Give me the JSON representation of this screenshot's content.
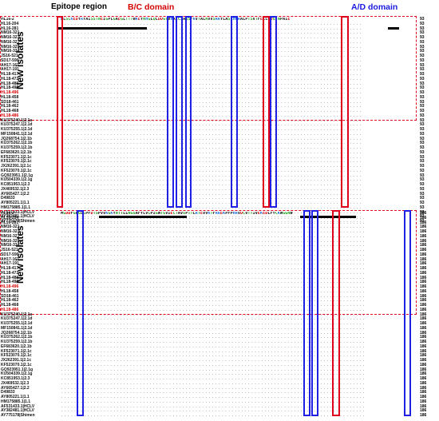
{
  "headers": {
    "epitope": "Epitope region",
    "bc": "B/C domain",
    "ad": "A/D domain"
  },
  "new_isolates_label": "New isolates",
  "colors": {
    "red_box": "#e0001b",
    "blue_box": "#1f1fe6",
    "n_green": "#1aa81a",
    "r_blue": "#1a6fe0",
    "d_red": "#d40000"
  },
  "isolates": [
    "HL16-2",
    "HL16-204",
    "HL16-281",
    "NM16-321",
    "NM16-323",
    "NM16-327",
    "NM16-329",
    "NM16-334",
    "JS16-521",
    "SD17-590",
    "AH17-167",
    "AH17-191",
    "HL18-417",
    "HL18-472",
    "HL18-489",
    "HL18-495",
    "HL18-496",
    "HL18-458",
    "SD18-461",
    "HL18-462",
    "HL18-468",
    "HL18-486",
    "KU375240.1|2.1a",
    "KU375247.1|2.1d",
    "KU375255.1|2.1d",
    "MF150841.1|2.1d",
    "JQ268754.1|2.1b",
    "KU375262.1|2.1b",
    "KU375259.1|2.1b",
    "EF683620.1|2.1b",
    "KF523071.1|2.1c",
    "KF523070.1|2.1c",
    "JX262391.1|2.1c",
    "KF523070.1|2.1c",
    "GQ923951.1|2.1g",
    "KU504339.1|2.1g",
    "KC851953.1|2.3",
    "JX469532.1|2.3",
    "AY665427.1|2.2",
    "D49833",
    "AY805221.1|1.1",
    "HM175885.1|1.1",
    "AF531433.1|HCLV",
    "AY382481.1|HCLV",
    "AY775178|Shimen"
  ],
  "red_isolates": [
    "HL18-486",
    "HL18-496"
  ],
  "panels": [
    {
      "id": "top",
      "ref_seq": "RLSCKEDYRYAISSTNEIGPLGAEGLTTTWKEYNHGLQLDDGTVRAICIAGSFKVTALNVVSRRYLASLHKRALPTSVTFELLFDGTNPAIE",
      "ruler": [
        "80",
        "90",
        "100",
        "110",
        "120",
        "130",
        "140",
        "150",
        "160",
        "170"
      ],
      "tail_number": "93",
      "bottom_ruler": [
        "100",
        "120",
        "140",
        "160"
      ]
    },
    {
      "id": "bottom",
      "ref_seq": "MGDDFGFGLCPFDTSPVVKGKYNTTLLNGSAFYLVCPIGWTGVIECTAVSPTTLRTEVVKTFRREKPFPHRVDCVTTIVEKEDLFYCKWGGNW",
      "ruler": [
        "100",
        "120",
        "140",
        "160",
        "180"
      ],
      "tail_number": "186",
      "bottom_ruler": [
        "100",
        "120",
        "140",
        "160",
        "180"
      ]
    }
  ]
}
